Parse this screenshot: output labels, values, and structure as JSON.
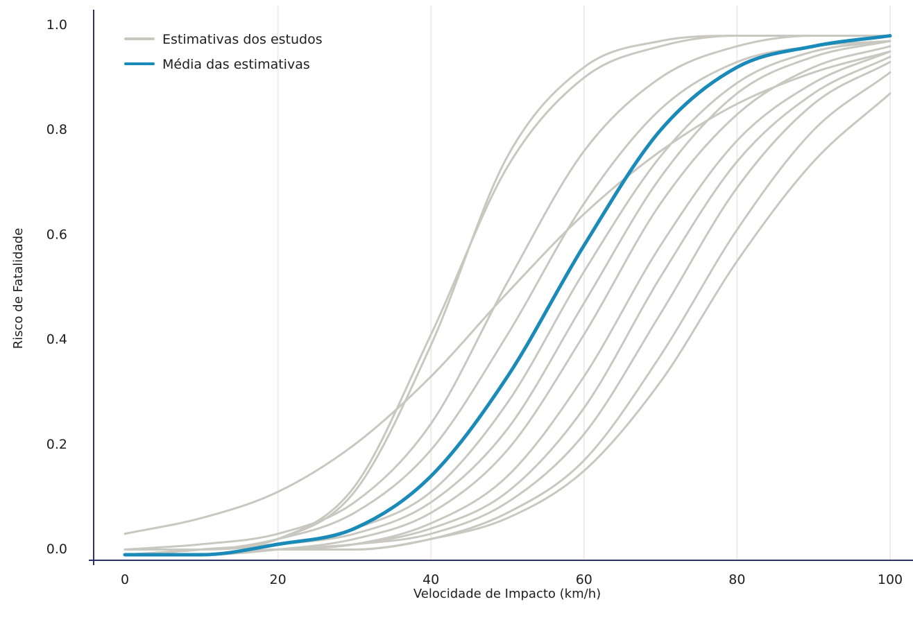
{
  "chart_data": {
    "type": "line",
    "xlabel": "Velocidade de Impacto (km/h)",
    "ylabel": "Risco de Fatalidade",
    "xlim": [
      0,
      100
    ],
    "ylim": [
      0,
      1
    ],
    "x_ticks": [
      "0",
      "20",
      "40",
      "60",
      "80",
      "100"
    ],
    "y_ticks": [
      "0.0",
      "0.2",
      "0.4",
      "0.6",
      "0.8",
      "1.0"
    ],
    "grid": "vertical",
    "legend_position": "top-left",
    "legend": [
      {
        "label": "Estimativas dos estudos",
        "color": "#c8c8c0",
        "series": "studies"
      },
      {
        "label": "Média das estimativas",
        "color": "#1a8ab8",
        "series": "mean"
      }
    ],
    "x": [
      0,
      10,
      20,
      30,
      40,
      50,
      60,
      70,
      80,
      90,
      100
    ],
    "series": [
      {
        "group": "studies",
        "values": [
          0.04,
          0.07,
          0.12,
          0.21,
          0.34,
          0.5,
          0.65,
          0.77,
          0.86,
          0.92,
          0.96
        ]
      },
      {
        "group": "studies",
        "values": [
          0.01,
          0.02,
          0.04,
          0.1,
          0.25,
          0.52,
          0.77,
          0.91,
          0.97,
          0.99,
          0.99
        ]
      },
      {
        "group": "studies",
        "values": [
          0.0,
          0.01,
          0.03,
          0.12,
          0.4,
          0.76,
          0.93,
          0.98,
          0.99,
          0.99,
          0.99
        ]
      },
      {
        "group": "studies",
        "values": [
          0.0,
          0.01,
          0.03,
          0.13,
          0.42,
          0.74,
          0.91,
          0.97,
          0.99,
          0.99,
          0.99
        ]
      },
      {
        "group": "studies",
        "values": [
          0.01,
          0.01,
          0.03,
          0.08,
          0.2,
          0.42,
          0.67,
          0.85,
          0.94,
          0.97,
          0.98
        ]
      },
      {
        "group": "studies",
        "values": [
          0.01,
          0.01,
          0.02,
          0.05,
          0.12,
          0.29,
          0.54,
          0.76,
          0.9,
          0.96,
          0.98
        ]
      },
      {
        "group": "studies",
        "values": [
          0.0,
          0.01,
          0.02,
          0.04,
          0.1,
          0.24,
          0.48,
          0.72,
          0.88,
          0.95,
          0.98
        ]
      },
      {
        "group": "studies",
        "values": [
          0.0,
          0.0,
          0.01,
          0.03,
          0.08,
          0.2,
          0.42,
          0.67,
          0.84,
          0.93,
          0.97
        ]
      },
      {
        "group": "studies",
        "values": [
          0.0,
          0.0,
          0.01,
          0.02,
          0.06,
          0.15,
          0.34,
          0.59,
          0.79,
          0.9,
          0.96
        ]
      },
      {
        "group": "studies",
        "values": [
          0.0,
          0.0,
          0.01,
          0.02,
          0.05,
          0.12,
          0.28,
          0.53,
          0.75,
          0.88,
          0.95
        ]
      },
      {
        "group": "studies",
        "values": [
          0.0,
          0.0,
          0.01,
          0.02,
          0.04,
          0.1,
          0.23,
          0.46,
          0.7,
          0.86,
          0.94
        ]
      },
      {
        "group": "studies",
        "values": [
          0.0,
          0.0,
          0.01,
          0.01,
          0.03,
          0.08,
          0.18,
          0.38,
          0.62,
          0.81,
          0.92
        ]
      },
      {
        "group": "studies",
        "values": [
          0.0,
          0.0,
          0.01,
          0.01,
          0.03,
          0.07,
          0.16,
          0.33,
          0.56,
          0.75,
          0.88
        ]
      },
      {
        "group": "mean",
        "values": [
          0.0,
          0.0,
          0.02,
          0.05,
          0.15,
          0.34,
          0.59,
          0.81,
          0.93,
          0.97,
          0.99
        ]
      }
    ]
  }
}
